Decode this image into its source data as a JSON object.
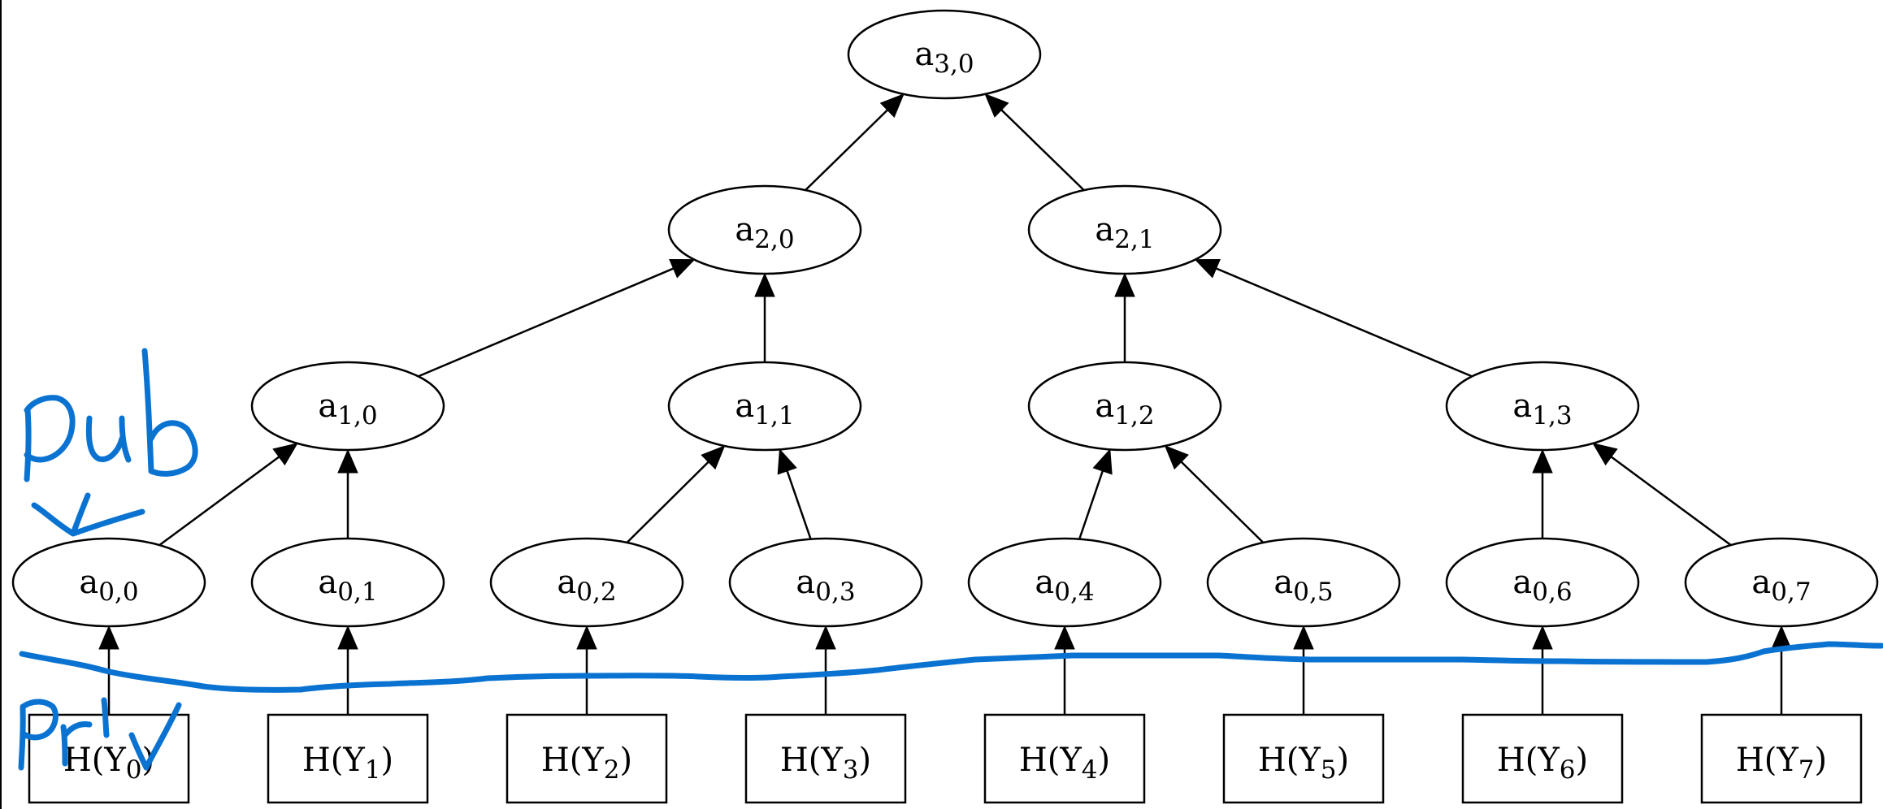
{
  "diagram": {
    "root": {
      "id": "a30",
      "base": "a",
      "sub": "3,0"
    },
    "level2": [
      {
        "id": "a20",
        "base": "a",
        "sub": "2,0"
      },
      {
        "id": "a21",
        "base": "a",
        "sub": "2,1"
      }
    ],
    "level1": [
      {
        "id": "a10",
        "base": "a",
        "sub": "1,0"
      },
      {
        "id": "a11",
        "base": "a",
        "sub": "1,1"
      },
      {
        "id": "a12",
        "base": "a",
        "sub": "1,2"
      },
      {
        "id": "a13",
        "base": "a",
        "sub": "1,3"
      }
    ],
    "level0": [
      {
        "id": "a00",
        "base": "a",
        "sub": "0,0"
      },
      {
        "id": "a01",
        "base": "a",
        "sub": "0,1"
      },
      {
        "id": "a02",
        "base": "a",
        "sub": "0,2"
      },
      {
        "id": "a03",
        "base": "a",
        "sub": "0,3"
      },
      {
        "id": "a04",
        "base": "a",
        "sub": "0,4"
      },
      {
        "id": "a05",
        "base": "a",
        "sub": "0,5"
      },
      {
        "id": "a06",
        "base": "a",
        "sub": "0,6"
      },
      {
        "id": "a07",
        "base": "a",
        "sub": "0,7"
      }
    ],
    "leaves": [
      {
        "id": "h0",
        "pre": "H(Y",
        "sub": "0",
        "post": ")"
      },
      {
        "id": "h1",
        "pre": "H(Y",
        "sub": "1",
        "post": ")"
      },
      {
        "id": "h2",
        "pre": "H(Y",
        "sub": "2",
        "post": ")"
      },
      {
        "id": "h3",
        "pre": "H(Y",
        "sub": "3",
        "post": ")"
      },
      {
        "id": "h4",
        "pre": "H(Y",
        "sub": "4",
        "post": ")"
      },
      {
        "id": "h5",
        "pre": "H(Y",
        "sub": "5",
        "post": ")"
      },
      {
        "id": "h6",
        "pre": "H(Y",
        "sub": "6",
        "post": ")"
      },
      {
        "id": "h7",
        "pre": "H(Y",
        "sub": "7",
        "post": ")"
      }
    ],
    "edges": [
      [
        "h0",
        "a00"
      ],
      [
        "h1",
        "a01"
      ],
      [
        "h2",
        "a02"
      ],
      [
        "h3",
        "a03"
      ],
      [
        "h4",
        "a04"
      ],
      [
        "h5",
        "a05"
      ],
      [
        "h6",
        "a06"
      ],
      [
        "h7",
        "a07"
      ],
      [
        "a00",
        "a10"
      ],
      [
        "a01",
        "a10"
      ],
      [
        "a02",
        "a11"
      ],
      [
        "a03",
        "a11"
      ],
      [
        "a04",
        "a12"
      ],
      [
        "a05",
        "a12"
      ],
      [
        "a06",
        "a13"
      ],
      [
        "a07",
        "a13"
      ],
      [
        "a10",
        "a20"
      ],
      [
        "a11",
        "a20"
      ],
      [
        "a12",
        "a21"
      ],
      [
        "a13",
        "a21"
      ],
      [
        "a20",
        "a30"
      ],
      [
        "a21",
        "a30"
      ]
    ]
  },
  "annotations": {
    "handwritten_upper": "pub",
    "handwritten_lower": "priv",
    "ink_color": "#0a73d1"
  }
}
